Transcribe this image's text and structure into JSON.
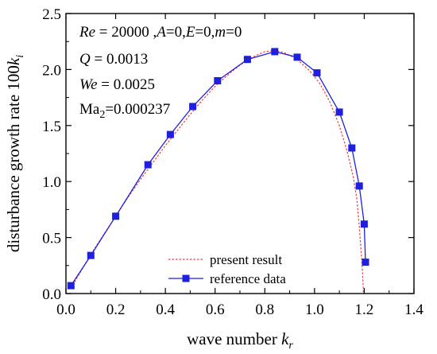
{
  "chart_data": {
    "type": "line",
    "xlabel": {
      "text": "wave number ",
      "var": "k",
      "sub": "r"
    },
    "ylabel": {
      "text": "disturbance growth rate 100",
      "var": "k",
      "sub": "i"
    },
    "xlim": [
      0.0,
      1.4
    ],
    "ylim": [
      0.0,
      2.5
    ],
    "xticks": [
      "0.0",
      "0.2",
      "0.4",
      "0.6",
      "0.8",
      "1.0",
      "1.2",
      "1.4"
    ],
    "yticks": [
      "0.0",
      "0.5",
      "1.0",
      "1.5",
      "2.0",
      "2.5"
    ],
    "annotations": [
      "Re = 20000 ,A=0,E=0,m=0",
      "Q = 0.0013",
      "We = 0.0025",
      "Ma2=0.000237"
    ],
    "legend": {
      "position": "bottom-center"
    },
    "series": [
      {
        "name": "present result",
        "style": "dashed",
        "color": "#e8413c",
        "points": [
          [
            0.02,
            0.05
          ],
          [
            0.05,
            0.16
          ],
          [
            0.1,
            0.35
          ],
          [
            0.15,
            0.52
          ],
          [
            0.2,
            0.69
          ],
          [
            0.25,
            0.86
          ],
          [
            0.3,
            1.02
          ],
          [
            0.35,
            1.17
          ],
          [
            0.4,
            1.32
          ],
          [
            0.45,
            1.46
          ],
          [
            0.5,
            1.6
          ],
          [
            0.55,
            1.73
          ],
          [
            0.6,
            1.85
          ],
          [
            0.65,
            1.95
          ],
          [
            0.7,
            2.04
          ],
          [
            0.75,
            2.11
          ],
          [
            0.8,
            2.16
          ],
          [
            0.84,
            2.17
          ],
          [
            0.88,
            2.15
          ],
          [
            0.93,
            2.09
          ],
          [
            0.98,
            1.99
          ],
          [
            1.02,
            1.88
          ],
          [
            1.06,
            1.72
          ],
          [
            1.1,
            1.5
          ],
          [
            1.13,
            1.28
          ],
          [
            1.155,
            1.05
          ],
          [
            1.17,
            0.85
          ],
          [
            1.18,
            0.6
          ],
          [
            1.19,
            0.3
          ],
          [
            1.195,
            0.1
          ],
          [
            1.197,
            0.0
          ]
        ]
      },
      {
        "name": "reference data",
        "style": "solid-square-markers",
        "color": "#1f1fe0",
        "points": [
          [
            0.02,
            0.07
          ],
          [
            0.1,
            0.34
          ],
          [
            0.2,
            0.69
          ],
          [
            0.33,
            1.15
          ],
          [
            0.42,
            1.42
          ],
          [
            0.51,
            1.67
          ],
          [
            0.61,
            1.9
          ],
          [
            0.73,
            2.09
          ],
          [
            0.84,
            2.16
          ],
          [
            0.93,
            2.11
          ],
          [
            1.01,
            1.97
          ],
          [
            1.1,
            1.62
          ],
          [
            1.15,
            1.3
          ],
          [
            1.18,
            0.96
          ],
          [
            1.2,
            0.62
          ],
          [
            1.205,
            0.28
          ]
        ]
      }
    ]
  }
}
